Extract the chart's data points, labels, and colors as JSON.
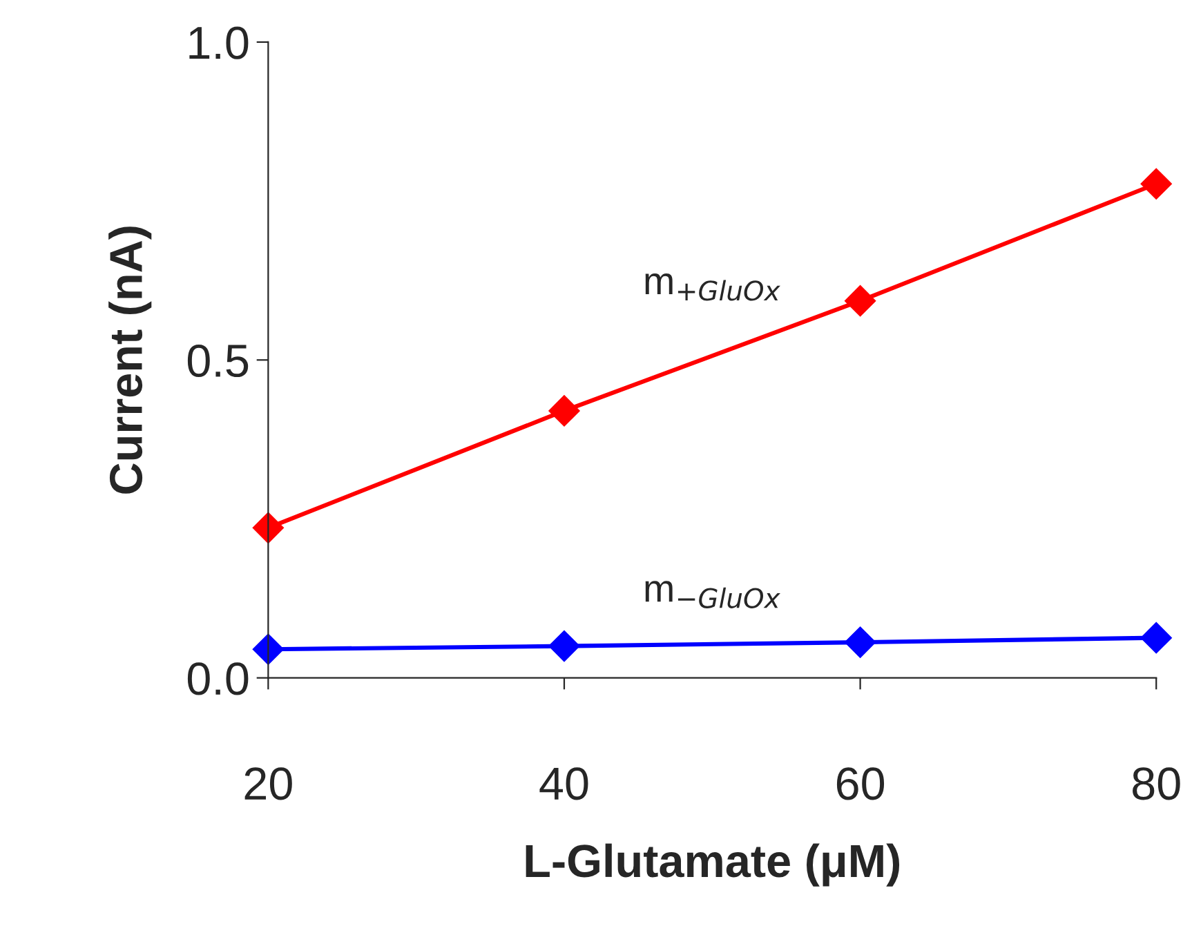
{
  "chart_data": {
    "type": "line",
    "xlabel": "L-Glutamate (μM)",
    "ylabel": "Current (nA)",
    "x": [
      20,
      40,
      60,
      80
    ],
    "series": [
      {
        "name": "m$_{+GluOx}$",
        "color": "#ff0000",
        "values": [
          0.236,
          0.42,
          0.593,
          0.777
        ]
      },
      {
        "name": "m$_{−GluOx}$",
        "color": "#0000ff",
        "values": [
          0.045,
          0.05,
          0.056,
          0.063
        ]
      }
    ],
    "xlim": [
      20,
      80
    ],
    "xticks": [
      20,
      40,
      60,
      80
    ],
    "ylim": [
      0,
      1.0
    ],
    "yticks": [
      {
        "value": 0,
        "label": "0.0"
      },
      {
        "value": 0.5,
        "label": "0.5"
      },
      {
        "value": 1.0,
        "label": "1.0"
      }
    ],
    "marker": "diamond",
    "line_style": "solid",
    "grid": false,
    "legend": false
  }
}
